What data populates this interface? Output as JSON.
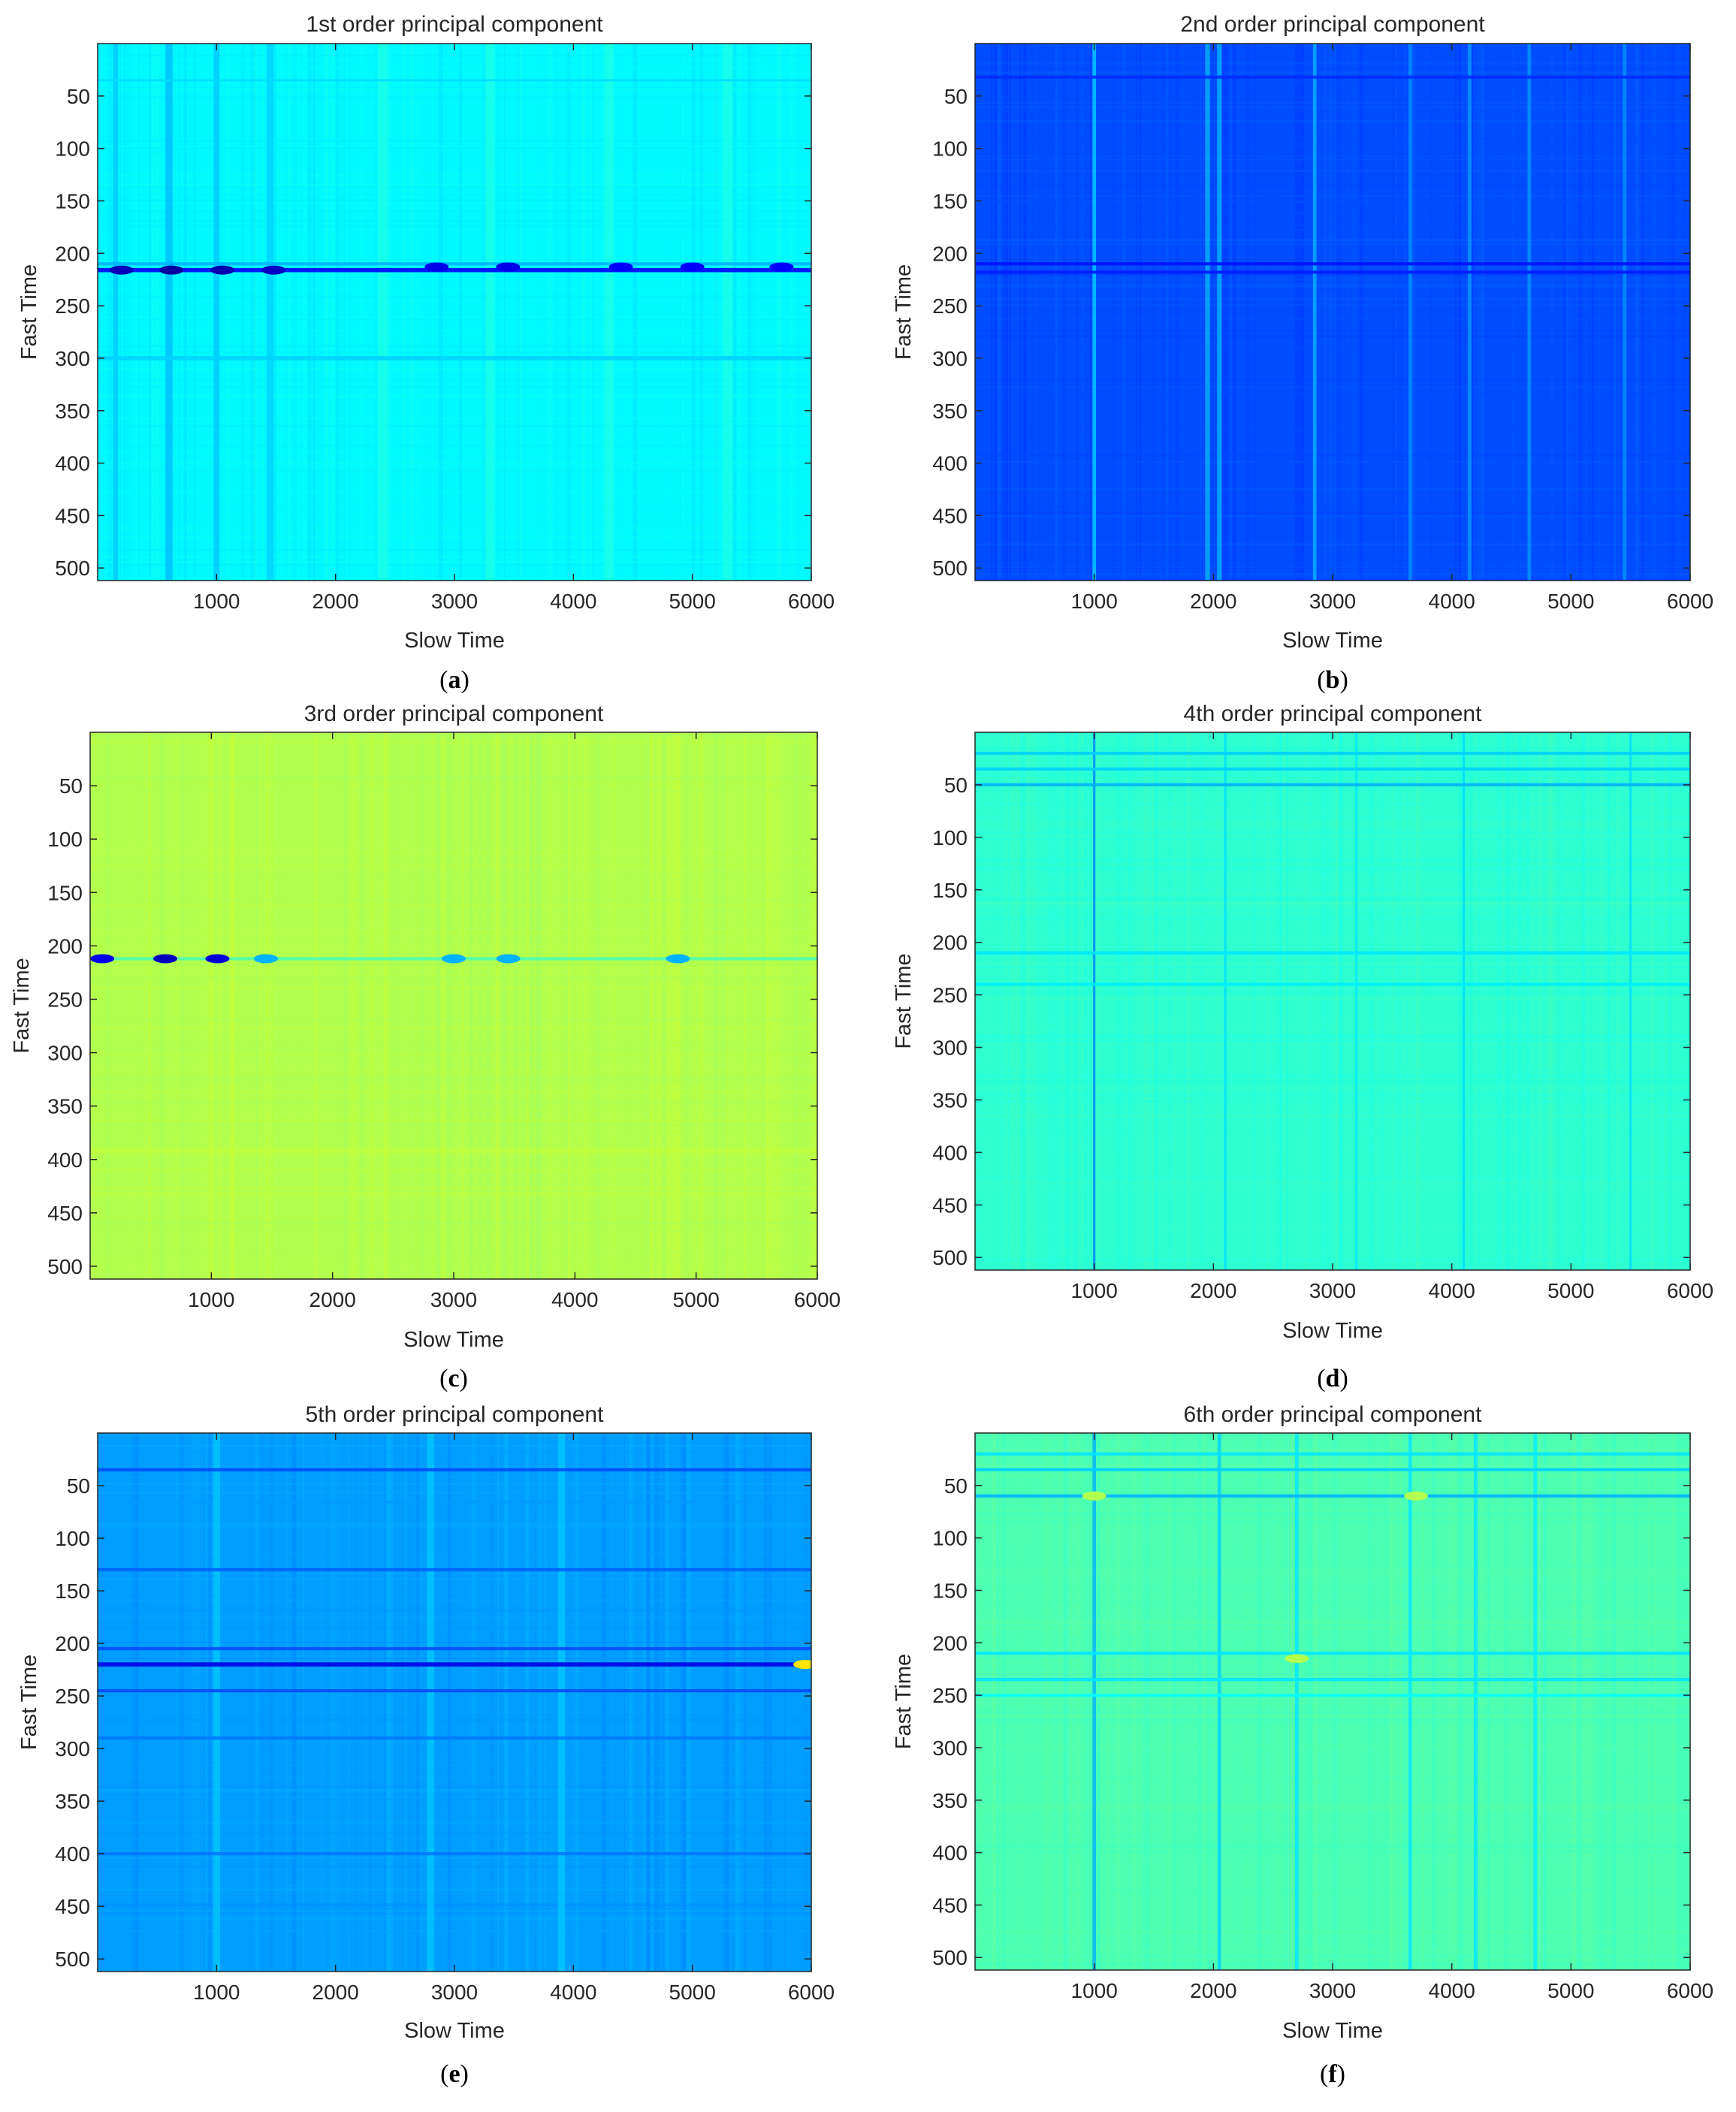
{
  "colormap": {
    "name": "jet",
    "stops": [
      "#00008f",
      "#0000ff",
      "#0080ff",
      "#00ffff",
      "#80ff80",
      "#ffff00",
      "#ff8000",
      "#ff0000",
      "#800000"
    ]
  },
  "chart_data": [
    {
      "type": "heatmap",
      "panel": "a",
      "caption": "a",
      "title": "1st order principal component",
      "xlabel": "Slow Time",
      "ylabel": "Fast Time",
      "xlim": [
        0,
        6000
      ],
      "ylim": [
        512,
        0
      ],
      "y_reversed": true,
      "xticks": [
        1000,
        2000,
        3000,
        4000,
        5000,
        6000
      ],
      "yticks": [
        50,
        100,
        150,
        200,
        250,
        300,
        350,
        400,
        450,
        500
      ],
      "base_level": 0.37,
      "row_features": [
        {
          "fast_time": 210,
          "width": 3,
          "level": 0.3
        },
        {
          "fast_time": 216,
          "width": 4,
          "level": 0.12
        },
        {
          "fast_time": 300,
          "width": 4,
          "level": 0.33
        },
        {
          "fast_time": 35,
          "width": 2,
          "level": 0.34
        }
      ],
      "col_features": [
        {
          "slow_time": 150,
          "width": 40,
          "level": 0.32
        },
        {
          "slow_time": 600,
          "width": 60,
          "level": 0.31
        },
        {
          "slow_time": 1000,
          "width": 50,
          "level": 0.32
        },
        {
          "slow_time": 1450,
          "width": 60,
          "level": 0.33
        },
        {
          "slow_time": 2400,
          "width": 80,
          "level": 0.4
        },
        {
          "slow_time": 3300,
          "width": 80,
          "level": 0.4
        },
        {
          "slow_time": 4300,
          "width": 80,
          "level": 0.4
        },
        {
          "slow_time": 5300,
          "width": 80,
          "level": 0.4
        }
      ],
      "hotspots": [
        {
          "slow_time": 200,
          "fast_time": 216,
          "level": 0.05
        },
        {
          "slow_time": 620,
          "fast_time": 216,
          "level": 0.02
        },
        {
          "slow_time": 1050,
          "fast_time": 216,
          "level": 0.04
        },
        {
          "slow_time": 1480,
          "fast_time": 216,
          "level": 0.06
        },
        {
          "slow_time": 2850,
          "fast_time": 213,
          "level": 0.1
        },
        {
          "slow_time": 3450,
          "fast_time": 213,
          "level": 0.1
        },
        {
          "slow_time": 4400,
          "fast_time": 213,
          "level": 0.12
        },
        {
          "slow_time": 5000,
          "fast_time": 213,
          "level": 0.12
        },
        {
          "slow_time": 5750,
          "fast_time": 213,
          "level": 0.12
        }
      ]
    },
    {
      "type": "heatmap",
      "panel": "b",
      "caption": "b",
      "title": "2nd order principal component",
      "xlabel": "Slow Time",
      "ylabel": "Fast Time",
      "xlim": [
        0,
        6000
      ],
      "ylim": [
        512,
        0
      ],
      "y_reversed": true,
      "xticks": [
        1000,
        2000,
        3000,
        4000,
        5000,
        6000
      ],
      "yticks": [
        50,
        100,
        150,
        200,
        250,
        300,
        350,
        400,
        450,
        500
      ],
      "base_level": 0.2,
      "row_features": [
        {
          "fast_time": 32,
          "width": 3,
          "level": 0.17
        },
        {
          "fast_time": 210,
          "width": 3,
          "level": 0.14
        },
        {
          "fast_time": 218,
          "width": 3,
          "level": 0.15
        }
      ],
      "col_features": [
        {
          "slow_time": 1000,
          "width": 30,
          "level": 0.33
        },
        {
          "slow_time": 1950,
          "width": 40,
          "level": 0.3
        },
        {
          "slow_time": 2050,
          "width": 40,
          "level": 0.3
        },
        {
          "slow_time": 2850,
          "width": 30,
          "level": 0.3
        },
        {
          "slow_time": 3650,
          "width": 30,
          "level": 0.27
        },
        {
          "slow_time": 4150,
          "width": 30,
          "level": 0.28
        },
        {
          "slow_time": 4650,
          "width": 30,
          "level": 0.27
        },
        {
          "slow_time": 5450,
          "width": 30,
          "level": 0.27
        }
      ],
      "hotspots": []
    },
    {
      "type": "heatmap",
      "panel": "c",
      "caption": "c",
      "title": "3rd order principal component",
      "xlabel": "Slow Time",
      "ylabel": "Fast Time",
      "xlim": [
        0,
        6000
      ],
      "ylim": [
        512,
        0
      ],
      "y_reversed": true,
      "xticks": [
        1000,
        2000,
        3000,
        4000,
        5000,
        6000
      ],
      "yticks": [
        50,
        100,
        150,
        200,
        250,
        300,
        350,
        400,
        450,
        500
      ],
      "base_level": 0.55,
      "row_features": [
        {
          "fast_time": 212,
          "width": 3,
          "level": 0.45
        }
      ],
      "col_features": [],
      "hotspots": [
        {
          "slow_time": 100,
          "fast_time": 212,
          "level": 0.1
        },
        {
          "slow_time": 620,
          "fast_time": 212,
          "level": 0.05
        },
        {
          "slow_time": 1050,
          "fast_time": 212,
          "level": 0.08
        },
        {
          "slow_time": 1450,
          "fast_time": 212,
          "level": 0.3
        },
        {
          "slow_time": 3000,
          "fast_time": 212,
          "level": 0.3
        },
        {
          "slow_time": 3450,
          "fast_time": 212,
          "level": 0.3
        },
        {
          "slow_time": 4850,
          "fast_time": 212,
          "level": 0.3
        }
      ]
    },
    {
      "type": "heatmap",
      "panel": "d",
      "caption": "d",
      "title": "4th order principal component",
      "xlabel": "Slow Time",
      "ylabel": "Fast Time",
      "xlim": [
        0,
        6000
      ],
      "ylim": [
        512,
        0
      ],
      "y_reversed": true,
      "xticks": [
        1000,
        2000,
        3000,
        4000,
        5000,
        6000
      ],
      "yticks": [
        50,
        100,
        150,
        200,
        250,
        300,
        350,
        400,
        450,
        500
      ],
      "base_level": 0.42,
      "row_features": [
        {
          "fast_time": 20,
          "width": 3,
          "level": 0.33
        },
        {
          "fast_time": 35,
          "width": 3,
          "level": 0.33
        },
        {
          "fast_time": 50,
          "width": 3,
          "level": 0.3
        },
        {
          "fast_time": 210,
          "width": 3,
          "level": 0.35
        },
        {
          "fast_time": 240,
          "width": 3,
          "level": 0.36
        }
      ],
      "col_features": [
        {
          "slow_time": 1000,
          "width": 20,
          "level": 0.25
        },
        {
          "slow_time": 2100,
          "width": 20,
          "level": 0.34
        },
        {
          "slow_time": 3200,
          "width": 20,
          "level": 0.35
        },
        {
          "slow_time": 4100,
          "width": 20,
          "level": 0.34
        },
        {
          "slow_time": 5500,
          "width": 20,
          "level": 0.34
        }
      ],
      "hotspots": []
    },
    {
      "type": "heatmap",
      "panel": "e",
      "caption": "e",
      "title": "5th order principal component",
      "xlabel": "Slow Time",
      "ylabel": "Fast Time",
      "xlim": [
        0,
        6000
      ],
      "ylim": [
        512,
        0
      ],
      "y_reversed": true,
      "xticks": [
        1000,
        2000,
        3000,
        4000,
        5000,
        6000
      ],
      "yticks": [
        50,
        100,
        150,
        200,
        250,
        300,
        350,
        400,
        450,
        500
      ],
      "base_level": 0.28,
      "row_features": [
        {
          "fast_time": 35,
          "width": 3,
          "level": 0.2
        },
        {
          "fast_time": 130,
          "width": 3,
          "level": 0.22
        },
        {
          "fast_time": 205,
          "width": 3,
          "level": 0.2
        },
        {
          "fast_time": 220,
          "width": 4,
          "level": 0.1
        },
        {
          "fast_time": 245,
          "width": 3,
          "level": 0.2
        },
        {
          "fast_time": 290,
          "width": 3,
          "level": 0.24
        },
        {
          "fast_time": 400,
          "width": 3,
          "level": 0.24
        }
      ],
      "col_features": [
        {
          "slow_time": 1000,
          "width": 60,
          "level": 0.32
        },
        {
          "slow_time": 2800,
          "width": 60,
          "level": 0.32
        },
        {
          "slow_time": 3900,
          "width": 60,
          "level": 0.32
        }
      ],
      "hotspots": [
        {
          "slow_time": 5950,
          "fast_time": 220,
          "level": 0.65
        }
      ]
    },
    {
      "type": "heatmap",
      "panel": "f",
      "caption": "f",
      "title": "6th order principal component",
      "xlabel": "Slow Time",
      "ylabel": "Fast Time",
      "xlim": [
        0,
        6000
      ],
      "ylim": [
        512,
        0
      ],
      "y_reversed": true,
      "xticks": [
        1000,
        2000,
        3000,
        4000,
        5000,
        6000
      ],
      "yticks": [
        50,
        100,
        150,
        200,
        250,
        300,
        350,
        400,
        450,
        500
      ],
      "base_level": 0.45,
      "row_features": [
        {
          "fast_time": 20,
          "width": 3,
          "level": 0.35
        },
        {
          "fast_time": 35,
          "width": 3,
          "level": 0.33
        },
        {
          "fast_time": 60,
          "width": 3,
          "level": 0.3
        },
        {
          "fast_time": 210,
          "width": 3,
          "level": 0.35
        },
        {
          "fast_time": 235,
          "width": 3,
          "level": 0.35
        },
        {
          "fast_time": 250,
          "width": 3,
          "level": 0.38
        }
      ],
      "col_features": [
        {
          "slow_time": 1000,
          "width": 30,
          "level": 0.3
        },
        {
          "slow_time": 2050,
          "width": 30,
          "level": 0.33
        },
        {
          "slow_time": 2700,
          "width": 30,
          "level": 0.35
        },
        {
          "slow_time": 3650,
          "width": 30,
          "level": 0.35
        },
        {
          "slow_time": 4200,
          "width": 30,
          "level": 0.35
        },
        {
          "slow_time": 4700,
          "width": 30,
          "level": 0.36
        }
      ],
      "hotspots": [
        {
          "slow_time": 1000,
          "fast_time": 60,
          "level": 0.55
        },
        {
          "slow_time": 2700,
          "fast_time": 215,
          "level": 0.55
        },
        {
          "slow_time": 3700,
          "fast_time": 60,
          "level": 0.55
        }
      ]
    }
  ]
}
